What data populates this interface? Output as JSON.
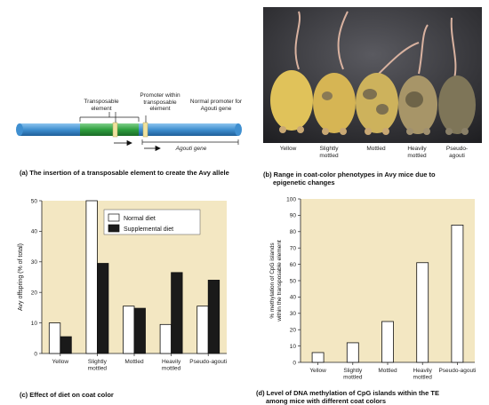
{
  "panel_a": {
    "label_transposable": "Transposable element",
    "label_promoter_within": "Promoter within transposable element",
    "label_normal_promoter": "Normal promoter for Agouti gene",
    "label_gene": "Agouti gene",
    "caption": "(a) The insertion of a transposable element to create the Avy allele",
    "colors": {
      "gene": "#3f8fd0",
      "transposon": "#2e9e3e",
      "promoter": "#e8d98a"
    }
  },
  "panel_b": {
    "mouse_labels": [
      "Yellow",
      "Slightly mottled",
      "Mottled",
      "Heavily mottled",
      "Pseudo-agouti"
    ],
    "caption_line1": "(b) Range in coat-color phenotypes in Avy mice due to",
    "caption_line2": "epigenetic changes"
  },
  "panel_c": {
    "caption": "(c) Effect of diet on coat color",
    "chart_data": {
      "type": "bar",
      "categories": [
        "Yellow",
        "Slightly mottled",
        "Mottled",
        "Heavily mottled",
        "Pseudo-agouti"
      ],
      "series": [
        {
          "name": "Normal diet",
          "values": [
            10,
            50,
            15.5,
            9.5,
            15.5
          ],
          "color": "#ffffff"
        },
        {
          "name": "Supplemental diet",
          "values": [
            5.5,
            29.5,
            14.8,
            26.5,
            24
          ],
          "color": "#1a1a1a"
        }
      ],
      "ylabel": "Avy offspring (% of total)",
      "ylim": [
        0,
        50
      ],
      "yticks": [
        0,
        10,
        20,
        30,
        40,
        50
      ],
      "legend": "top-right",
      "background": "#f3e7c2"
    }
  },
  "panel_d": {
    "caption_line1": "(d) Level of DNA methylation of CpG islands within the TE",
    "caption_line2": "among mice with different coat colors",
    "chart_data": {
      "type": "bar",
      "categories": [
        "Yellow",
        "Slightly mottled",
        "Mottled",
        "Heavily mottled",
        "Pseudo-agouti"
      ],
      "values": [
        6,
        12,
        25,
        61,
        84
      ],
      "ylabel": "% methylation of CpG islands within the transposable element",
      "ylim": [
        0,
        100
      ],
      "yticks": [
        0,
        10,
        20,
        30,
        40,
        50,
        60,
        70,
        80,
        90,
        100
      ],
      "background": "#f3e7c2"
    }
  }
}
